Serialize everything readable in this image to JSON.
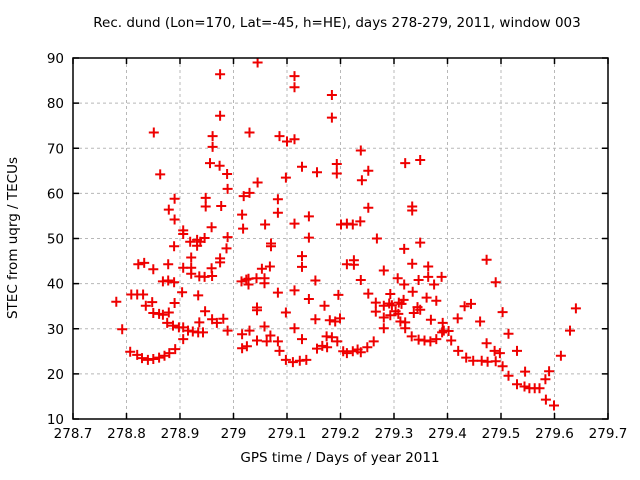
{
  "chart_data": {
    "type": "scatter",
    "title": "Rec. dund (Lon=170, Lat=-45, h=HE), days 278-279, 2011, window 003",
    "xlabel": "GPS time / Days of year 2011",
    "ylabel": "STEC from uqrg / TECUs",
    "xlim": [
      278.7,
      279.7
    ],
    "ylim": [
      10,
      90
    ],
    "grid": true,
    "legend": "none",
    "marker": "plus",
    "marker_color": "#ee0000",
    "grid_color": "#b8b8b8",
    "border_color": "#000000",
    "x_ticks": [
      {
        "v": 278.7,
        "label": "278.7"
      },
      {
        "v": 278.8,
        "label": "278.8"
      },
      {
        "v": 278.9,
        "label": "278.9"
      },
      {
        "v": 279.0,
        "label": "279"
      },
      {
        "v": 279.1,
        "label": "279.1"
      },
      {
        "v": 279.2,
        "label": "279.2"
      },
      {
        "v": 279.3,
        "label": "279.3"
      },
      {
        "v": 279.4,
        "label": "279.4"
      },
      {
        "v": 279.5,
        "label": "279.5"
      },
      {
        "v": 279.6,
        "label": "279.6"
      },
      {
        "v": 279.7,
        "label": "279.7"
      }
    ],
    "y_ticks": [
      {
        "v": 10,
        "label": "10"
      },
      {
        "v": 20,
        "label": "20"
      },
      {
        "v": 30,
        "label": "30"
      },
      {
        "v": 40,
        "label": "40"
      },
      {
        "v": 50,
        "label": "50"
      },
      {
        "v": 60,
        "label": "60"
      },
      {
        "v": 70,
        "label": "70"
      },
      {
        "v": 80,
        "label": "80"
      },
      {
        "v": 90,
        "label": "90"
      }
    ],
    "points": [
      [
        278.851,
        73.5
      ],
      [
        278.863,
        64.2
      ],
      [
        278.781,
        36.0
      ],
      [
        278.792,
        29.9
      ],
      [
        278.807,
        24.9
      ],
      [
        278.82,
        24.2
      ],
      [
        278.829,
        23.5
      ],
      [
        278.84,
        23.1
      ],
      [
        278.85,
        23.3
      ],
      [
        278.861,
        23.6
      ],
      [
        278.871,
        24.0
      ],
      [
        278.88,
        24.6
      ],
      [
        278.891,
        25.5
      ],
      [
        278.809,
        37.6
      ],
      [
        278.82,
        37.6
      ],
      [
        278.831,
        37.6
      ],
      [
        278.822,
        44.3
      ],
      [
        278.833,
        44.6
      ],
      [
        278.85,
        43.2
      ],
      [
        278.836,
        35.1
      ],
      [
        278.848,
        35.9
      ],
      [
        278.85,
        33.5
      ],
      [
        278.861,
        33.3
      ],
      [
        278.868,
        33.1
      ],
      [
        278.879,
        33.6
      ],
      [
        278.89,
        35.7
      ],
      [
        278.876,
        31.3
      ],
      [
        278.887,
        30.7
      ],
      [
        278.898,
        30.3
      ],
      [
        278.906,
        30.3
      ],
      [
        278.915,
        29.6
      ],
      [
        278.924,
        29.4
      ],
      [
        278.934,
        29.2
      ],
      [
        278.943,
        29.2
      ],
      [
        278.936,
        31.4
      ],
      [
        278.906,
        27.7
      ],
      [
        278.868,
        40.5
      ],
      [
        278.878,
        40.7
      ],
      [
        278.889,
        40.3
      ],
      [
        278.975,
        86.4
      ],
      [
        278.975,
        77.2
      ],
      [
        278.961,
        72.7
      ],
      [
        278.961,
        70.3
      ],
      [
        278.956,
        66.7
      ],
      [
        278.974,
        66.1
      ],
      [
        278.988,
        64.3
      ],
      [
        278.89,
        58.8
      ],
      [
        278.948,
        59.0
      ],
      [
        278.948,
        57.1
      ],
      [
        278.879,
        56.4
      ],
      [
        278.89,
        54.2
      ],
      [
        278.906,
        51.8
      ],
      [
        278.906,
        51.0
      ],
      [
        278.919,
        49.3
      ],
      [
        278.932,
        49.7
      ],
      [
        278.938,
        49.3
      ],
      [
        278.932,
        48.4
      ],
      [
        278.946,
        50.1
      ],
      [
        278.889,
        48.3
      ],
      [
        278.921,
        45.8
      ],
      [
        278.878,
        44.3
      ],
      [
        278.921,
        43.5
      ],
      [
        278.906,
        43.5
      ],
      [
        278.921,
        42.2
      ],
      [
        278.936,
        41.6
      ],
      [
        278.946,
        41.5
      ],
      [
        278.959,
        52.5
      ],
      [
        278.959,
        43.4
      ],
      [
        278.96,
        41.7
      ],
      [
        278.934,
        37.4
      ],
      [
        278.904,
        38.1
      ],
      [
        278.947,
        33.9
      ],
      [
        279.045,
        89.0
      ],
      [
        279.03,
        73.5
      ],
      [
        279.086,
        72.7
      ],
      [
        279.1,
        71.5
      ],
      [
        279.114,
        72.0
      ],
      [
        279.098,
        63.5
      ],
      [
        279.045,
        62.4
      ],
      [
        278.989,
        61.0
      ],
      [
        279.03,
        60.1
      ],
      [
        279.019,
        59.4
      ],
      [
        279.083,
        58.7
      ],
      [
        278.977,
        57.2
      ],
      [
        279.016,
        55.3
      ],
      [
        279.083,
        55.7
      ],
      [
        279.059,
        53.1
      ],
      [
        279.018,
        52.2
      ],
      [
        278.989,
        50.3
      ],
      [
        278.987,
        47.8
      ],
      [
        278.975,
        45.6
      ],
      [
        278.975,
        44.7
      ],
      [
        279.07,
        48.9
      ],
      [
        279.07,
        48.3
      ],
      [
        279.053,
        43.3
      ],
      [
        279.068,
        43.8
      ],
      [
        279.015,
        40.5
      ],
      [
        279.024,
        40.9
      ],
      [
        279.028,
        41.1
      ],
      [
        279.043,
        41.2
      ],
      [
        279.028,
        39.8
      ],
      [
        279.058,
        41.2
      ],
      [
        279.058,
        40.1
      ],
      [
        279.083,
        38.0
      ],
      [
        279.016,
        28.8
      ],
      [
        279.03,
        29.6
      ],
      [
        279.016,
        25.7
      ],
      [
        279.025,
        26.1
      ],
      [
        279.044,
        27.4
      ],
      [
        278.989,
        29.6
      ],
      [
        278.969,
        31.3
      ],
      [
        278.96,
        32.1
      ],
      [
        278.981,
        32.2
      ],
      [
        279.044,
        34.7
      ],
      [
        279.044,
        34.1
      ],
      [
        279.058,
        30.5
      ],
      [
        279.069,
        28.5
      ],
      [
        279.062,
        27.2
      ],
      [
        279.083,
        27.2
      ],
      [
        279.086,
        25.1
      ],
      [
        279.114,
        86.0
      ],
      [
        279.114,
        83.5
      ],
      [
        279.184,
        81.8
      ],
      [
        279.184,
        76.8
      ],
      [
        279.128,
        65.9
      ],
      [
        279.156,
        64.7
      ],
      [
        279.193,
        66.5
      ],
      [
        279.193,
        64.4
      ],
      [
        279.141,
        54.9
      ],
      [
        279.114,
        53.3
      ],
      [
        279.141,
        50.2
      ],
      [
        279.128,
        46.1
      ],
      [
        279.128,
        43.7
      ],
      [
        279.153,
        40.7
      ],
      [
        279.114,
        38.5
      ],
      [
        279.141,
        36.6
      ],
      [
        279.196,
        37.5
      ],
      [
        279.098,
        33.6
      ],
      [
        279.114,
        30.1
      ],
      [
        279.128,
        27.7
      ],
      [
        279.098,
        23.1
      ],
      [
        279.111,
        22.6
      ],
      [
        279.124,
        22.9
      ],
      [
        279.136,
        23.1
      ],
      [
        279.153,
        32.1
      ],
      [
        279.17,
        35.1
      ],
      [
        279.18,
        31.9
      ],
      [
        279.19,
        31.6
      ],
      [
        279.156,
        25.6
      ],
      [
        279.166,
        26.2
      ],
      [
        279.174,
        28.3
      ],
      [
        279.184,
        28.1
      ],
      [
        279.175,
        25.9
      ],
      [
        279.194,
        27.2
      ],
      [
        279.199,
        32.3
      ],
      [
        279.238,
        69.5
      ],
      [
        279.252,
        65.0
      ],
      [
        279.321,
        66.7
      ],
      [
        279.349,
        67.4
      ],
      [
        279.24,
        62.9
      ],
      [
        279.252,
        56.8
      ],
      [
        279.334,
        57.1
      ],
      [
        279.334,
        56.2
      ],
      [
        279.212,
        53.3
      ],
      [
        279.223,
        53.1
      ],
      [
        279.237,
        53.8
      ],
      [
        279.201,
        53.1
      ],
      [
        279.268,
        50.0
      ],
      [
        279.319,
        47.7
      ],
      [
        279.349,
        49.1
      ],
      [
        279.212,
        44.3
      ],
      [
        279.225,
        45.2
      ],
      [
        279.225,
        44.2
      ],
      [
        279.281,
        42.9
      ],
      [
        279.334,
        44.4
      ],
      [
        279.364,
        43.8
      ],
      [
        279.364,
        41.5
      ],
      [
        279.389,
        41.5
      ],
      [
        279.346,
        40.8
      ],
      [
        279.307,
        41.2
      ],
      [
        279.238,
        40.8
      ],
      [
        279.319,
        39.8
      ],
      [
        279.375,
        39.8
      ],
      [
        279.361,
        36.9
      ],
      [
        279.335,
        38.2
      ],
      [
        279.293,
        37.7
      ],
      [
        279.252,
        37.8
      ],
      [
        279.266,
        35.8
      ],
      [
        279.266,
        33.8
      ],
      [
        279.281,
        35.1
      ],
      [
        279.291,
        35.6
      ],
      [
        279.296,
        35.2
      ],
      [
        279.309,
        35.8
      ],
      [
        279.314,
        35.5
      ],
      [
        279.318,
        36.4
      ],
      [
        279.379,
        36.2
      ],
      [
        279.344,
        34.8
      ],
      [
        279.293,
        33.0
      ],
      [
        279.303,
        33.9
      ],
      [
        279.308,
        33.3
      ],
      [
        279.281,
        32.5
      ],
      [
        279.281,
        30.1
      ],
      [
        279.312,
        31.6
      ],
      [
        279.321,
        31.4
      ],
      [
        279.321,
        30.1
      ],
      [
        279.337,
        33.5
      ],
      [
        279.349,
        34.2
      ],
      [
        279.369,
        32.0
      ],
      [
        279.333,
        28.3
      ],
      [
        279.346,
        27.6
      ],
      [
        279.357,
        27.4
      ],
      [
        279.368,
        27.2
      ],
      [
        279.379,
        27.7
      ],
      [
        279.39,
        29.2
      ],
      [
        279.205,
        25.0
      ],
      [
        279.212,
        24.6
      ],
      [
        279.223,
        25.0
      ],
      [
        279.232,
        25.4
      ],
      [
        279.238,
        24.8
      ],
      [
        279.25,
        25.9
      ],
      [
        279.262,
        27.2
      ],
      [
        279.393,
        29.6
      ],
      [
        279.402,
        29.5
      ],
      [
        279.391,
        31.3
      ],
      [
        279.407,
        27.4
      ],
      [
        279.419,
        32.3
      ],
      [
        279.42,
        25.1
      ],
      [
        279.432,
        35.0
      ],
      [
        279.444,
        35.5
      ],
      [
        279.435,
        23.6
      ],
      [
        279.448,
        22.9
      ],
      [
        279.461,
        31.6
      ],
      [
        279.473,
        45.3
      ],
      [
        279.473,
        26.8
      ],
      [
        279.49,
        40.3
      ],
      [
        279.503,
        33.7
      ],
      [
        279.514,
        28.9
      ],
      [
        279.488,
        25.1
      ],
      [
        279.498,
        24.6
      ],
      [
        279.53,
        25.1
      ],
      [
        279.464,
        22.9
      ],
      [
        279.475,
        22.7
      ],
      [
        279.49,
        22.8
      ],
      [
        279.503,
        21.7
      ],
      [
        279.514,
        19.6
      ],
      [
        279.53,
        17.7
      ],
      [
        279.544,
        17.2
      ],
      [
        279.545,
        20.5
      ],
      [
        279.553,
        16.8
      ],
      [
        279.563,
        16.8
      ],
      [
        279.572,
        16.8
      ],
      [
        279.583,
        18.8
      ],
      [
        279.59,
        20.6
      ],
      [
        279.612,
        24.0
      ],
      [
        279.629,
        29.6
      ],
      [
        279.64,
        34.5
      ],
      [
        279.584,
        14.3
      ],
      [
        279.599,
        13.0
      ]
    ]
  }
}
